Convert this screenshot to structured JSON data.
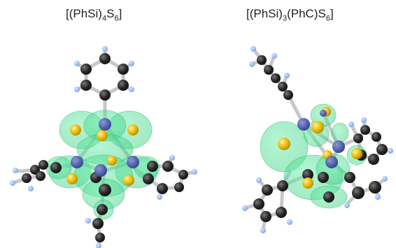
{
  "molecules": [
    {
      "formula": "[(PhSi)4S6]",
      "parts": [
        {
          "text": "[(PhSi)",
          "sub": false
        },
        {
          "text": "4",
          "sub": true
        },
        {
          "text": "S",
          "sub": false
        },
        {
          "text": "6",
          "sub": true
        },
        {
          "text": "]",
          "sub": false
        }
      ]
    },
    {
      "formula": "[(PhSi)3(PhC)S6]",
      "parts": [
        {
          "text": "[(PhSi)",
          "sub": false
        },
        {
          "text": "3",
          "sub": true
        },
        {
          "text": "(PhC)S",
          "sub": false
        },
        {
          "text": "6",
          "sub": true
        },
        {
          "text": "]",
          "sub": false
        }
      ]
    }
  ],
  "colors": {
    "carbon": "#222222",
    "hydrogen": "#8fb4f0",
    "silicon": "#4a5aa8",
    "sulfur": "#e0b000",
    "bond": "#c8c8c8",
    "orbital": "#3fdc8c"
  }
}
